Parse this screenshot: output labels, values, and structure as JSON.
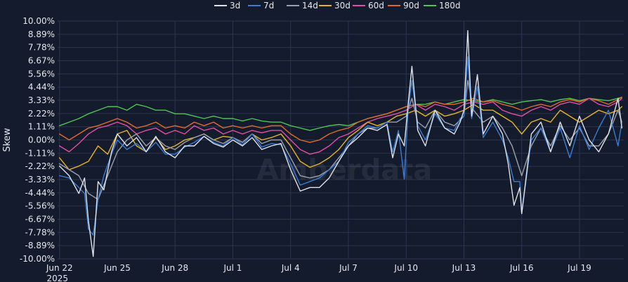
{
  "chart_data": {
    "type": "line",
    "ylabel": "Skew",
    "ylim": [
      -10.0,
      10.0
    ],
    "y_ticks": [
      "10.00%",
      "8.89%",
      "7.78%",
      "6.67%",
      "5.56%",
      "4.44%",
      "3.33%",
      "2.22%",
      "1.11%",
      "0.00%",
      "-1.11%",
      "-2.22%",
      "-3.33%",
      "-4.44%",
      "-5.56%",
      "-6.67%",
      "-7.78%",
      "-8.89%",
      "-10.00%"
    ],
    "x_ticks": [
      {
        "label": "Jun 22",
        "sublabel": "2025",
        "x": 0
      },
      {
        "label": "Jun 25",
        "sublabel": "",
        "x": 3
      },
      {
        "label": "Jun 28",
        "sublabel": "",
        "x": 6
      },
      {
        "label": "Jul 1",
        "sublabel": "",
        "x": 9
      },
      {
        "label": "Jul 4",
        "sublabel": "",
        "x": 12
      },
      {
        "label": "Jul 7",
        "sublabel": "",
        "x": 15
      },
      {
        "label": "Jul 10",
        "sublabel": "",
        "x": 18
      },
      {
        "label": "Jul 13",
        "sublabel": "",
        "x": 21
      },
      {
        "label": "Jul 16",
        "sublabel": "",
        "x": 24
      },
      {
        "label": "Jul 19",
        "sublabel": "",
        "x": 27
      }
    ],
    "xlim": [
      -0.1,
      29.3
    ],
    "x_unit": "days from Jun 22 2025",
    "grid": true,
    "legend_position": "top-center",
    "watermark": "Amberdata",
    "series": [
      {
        "name": "3d",
        "color": "#dde1e8",
        "x": [
          0,
          0.5,
          1,
          1.3,
          1.5,
          1.75,
          2,
          2.3,
          2.7,
          3,
          3.5,
          4,
          4.5,
          5,
          5.5,
          6,
          6.5,
          7,
          7.5,
          8,
          8.5,
          9,
          9.5,
          10,
          10.5,
          11,
          11.5,
          12,
          12.5,
          13,
          13.5,
          14,
          14.5,
          15,
          15.5,
          16,
          16.5,
          17,
          17.3,
          17.6,
          17.9,
          18.1,
          18.3,
          18.6,
          19,
          19.5,
          20,
          20.5,
          20.8,
          21,
          21.2,
          21.4,
          21.7,
          22,
          22.5,
          23,
          23.3,
          23.6,
          23.9,
          24,
          24.5,
          25,
          25.5,
          26,
          26.5,
          27,
          27.5,
          28,
          28.5,
          29,
          29.2
        ],
        "y": [
          -2.2,
          -3.0,
          -4.5,
          -3.2,
          -6.8,
          -9.8,
          -3.5,
          -4.2,
          -1.0,
          0.5,
          -0.5,
          0.2,
          -1.0,
          0.3,
          -1.0,
          -1.5,
          -0.5,
          -0.5,
          0.3,
          -0.3,
          -0.6,
          0.0,
          -0.5,
          0.2,
          -0.8,
          -0.5,
          -0.3,
          -2.5,
          -4.3,
          -4.0,
          -4.0,
          -3.2,
          -1.8,
          -0.5,
          0.2,
          1.0,
          0.8,
          1.3,
          -1.5,
          0.5,
          -0.5,
          3.0,
          6.2,
          0.8,
          -0.5,
          2.5,
          1.0,
          0.5,
          1.5,
          2.5,
          9.2,
          2.0,
          5.5,
          0.5,
          2.0,
          0.5,
          -2.0,
          -5.5,
          -4.0,
          -6.2,
          0.5,
          1.5,
          -1.0,
          1.5,
          -0.5,
          2.0,
          0.0,
          -1.0,
          0.5,
          3.5,
          1.0
        ]
      },
      {
        "name": "7d",
        "color": "#3a7bd5",
        "x": [
          0,
          0.5,
          1,
          1.3,
          1.5,
          1.75,
          2,
          2.3,
          2.7,
          3,
          3.5,
          4,
          4.5,
          5,
          5.5,
          6,
          6.5,
          7,
          7.5,
          8,
          8.5,
          9,
          9.5,
          10,
          10.5,
          11,
          11.5,
          12,
          12.5,
          13,
          13.5,
          14,
          14.5,
          15,
          15.5,
          16,
          16.5,
          17,
          17.3,
          17.6,
          17.9,
          18.1,
          18.3,
          18.6,
          19,
          19.5,
          20,
          20.5,
          20.8,
          21,
          21.2,
          21.4,
          21.7,
          22,
          22.5,
          23,
          23.3,
          23.6,
          23.9,
          24,
          24.5,
          25,
          25.5,
          26,
          26.5,
          27,
          27.5,
          28,
          28.5,
          29,
          29.2
        ],
        "y": [
          -3.0,
          -3.2,
          -4.0,
          -4.5,
          -7.5,
          -8.0,
          -5.0,
          -3.0,
          -1.2,
          0.0,
          -0.8,
          -0.3,
          -1.0,
          -0.2,
          -1.2,
          -1.2,
          -0.6,
          -0.2,
          0.3,
          -0.2,
          -0.5,
          0.2,
          -0.4,
          0.5,
          -0.6,
          -0.3,
          -0.4,
          -2.0,
          -3.8,
          -3.5,
          -3.2,
          -2.5,
          -1.8,
          -0.2,
          0.5,
          1.2,
          1.0,
          1.5,
          -1.0,
          0.8,
          -3.3,
          2.5,
          5.0,
          1.2,
          0.0,
          2.2,
          1.0,
          0.8,
          1.8,
          2.0,
          7.0,
          1.8,
          4.5,
          0.2,
          1.5,
          0.0,
          -1.5,
          -3.5,
          -3.5,
          -6.2,
          0.0,
          1.0,
          -1.0,
          1.0,
          -1.5,
          1.2,
          -0.8,
          1.0,
          2.5,
          -0.5,
          1.5
        ]
      },
      {
        "name": "14d",
        "color": "#9aa0ab",
        "x": [
          0,
          0.5,
          1,
          1.5,
          2,
          2.5,
          3,
          3.5,
          4,
          4.5,
          5,
          5.5,
          6,
          6.5,
          7,
          7.5,
          8,
          8.5,
          9,
          9.5,
          10,
          10.5,
          11,
          11.5,
          12,
          12.5,
          13,
          13.5,
          14,
          14.5,
          15,
          15.5,
          16,
          16.5,
          17,
          17.5,
          18,
          18.3,
          18.6,
          19,
          19.5,
          20,
          20.5,
          21,
          21.2,
          21.5,
          22,
          22.5,
          23,
          23.5,
          24,
          24.5,
          25,
          25.5,
          26,
          26.5,
          27,
          27.5,
          28,
          28.5,
          29,
          29.2
        ],
        "y": [
          -2.0,
          -2.5,
          -3.0,
          -4.5,
          -5.0,
          -3.0,
          -1.0,
          0.0,
          0.5,
          -0.5,
          0.2,
          -0.5,
          -0.8,
          -0.2,
          0.2,
          0.5,
          0.0,
          -0.3,
          0.2,
          -0.2,
          0.5,
          -0.3,
          0.0,
          0.0,
          -1.5,
          -3.0,
          -3.2,
          -3.0,
          -2.5,
          -1.5,
          -0.5,
          0.5,
          1.0,
          1.0,
          1.5,
          1.5,
          2.0,
          3.5,
          1.5,
          1.0,
          2.5,
          1.5,
          1.2,
          2.0,
          5.0,
          2.5,
          1.5,
          2.0,
          1.0,
          -0.5,
          -3.0,
          -0.5,
          1.0,
          -0.5,
          1.2,
          0.0,
          1.0,
          -0.5,
          -0.5,
          0.5,
          2.5,
          1.5
        ]
      },
      {
        "name": "30d",
        "color": "#e6b422",
        "x": [
          0,
          0.5,
          1,
          1.5,
          2,
          2.5,
          3,
          3.5,
          4,
          4.5,
          5,
          5.5,
          6,
          6.5,
          7,
          7.5,
          8,
          8.5,
          9,
          9.5,
          10,
          10.5,
          11,
          11.5,
          12,
          12.5,
          13,
          13.5,
          14,
          14.5,
          15,
          15.5,
          16,
          16.5,
          17,
          17.5,
          18,
          18.5,
          19,
          19.5,
          20,
          20.5,
          21,
          21.5,
          22,
          22.5,
          23,
          23.5,
          24,
          24.5,
          25,
          25.5,
          26,
          26.5,
          27,
          27.5,
          28,
          28.5,
          29,
          29.2
        ],
        "y": [
          -1.5,
          -2.5,
          -2.2,
          -1.8,
          -0.5,
          -1.2,
          0.5,
          0.8,
          -0.5,
          -1.0,
          0.2,
          -0.8,
          -0.5,
          0.0,
          0.2,
          0.5,
          0.0,
          0.3,
          0.2,
          -0.2,
          0.5,
          0.0,
          0.2,
          0.5,
          -0.5,
          -1.8,
          -2.3,
          -2.0,
          -1.5,
          -0.8,
          0.2,
          0.8,
          1.5,
          1.2,
          1.5,
          2.0,
          2.2,
          2.5,
          2.0,
          2.5,
          2.0,
          2.2,
          2.5,
          3.0,
          2.5,
          2.5,
          2.0,
          1.5,
          0.5,
          1.5,
          1.8,
          1.5,
          2.5,
          2.0,
          1.5,
          2.0,
          2.5,
          2.2,
          2.5,
          2.8
        ]
      },
      {
        "name": "60d",
        "color": "#e24fa4",
        "x": [
          0,
          0.5,
          1,
          1.5,
          2,
          2.5,
          3,
          3.5,
          4,
          4.5,
          5,
          5.5,
          6,
          6.5,
          7,
          7.5,
          8,
          8.5,
          9,
          9.5,
          10,
          10.5,
          11,
          11.5,
          12,
          12.5,
          13,
          13.5,
          14,
          14.5,
          15,
          15.5,
          16,
          16.5,
          17,
          17.5,
          18,
          18.5,
          19,
          19.5,
          20,
          20.5,
          21,
          21.5,
          22,
          22.5,
          23,
          23.5,
          24,
          24.5,
          25,
          25.5,
          26,
          26.5,
          27,
          27.5,
          28,
          28.5,
          29,
          29.2
        ],
        "y": [
          -0.5,
          -1.0,
          -0.3,
          0.5,
          1.0,
          1.2,
          1.5,
          1.2,
          0.5,
          0.8,
          1.0,
          0.5,
          0.8,
          0.5,
          1.2,
          0.8,
          1.0,
          0.5,
          0.8,
          0.5,
          0.8,
          0.6,
          0.8,
          0.8,
          0.0,
          -0.8,
          -1.2,
          -1.0,
          -0.5,
          0.2,
          0.5,
          1.0,
          1.5,
          1.8,
          2.0,
          2.2,
          2.5,
          3.0,
          2.5,
          3.0,
          2.8,
          2.5,
          3.0,
          3.2,
          3.0,
          3.2,
          2.5,
          2.2,
          2.0,
          2.5,
          2.8,
          2.5,
          3.0,
          3.2,
          3.0,
          3.5,
          3.0,
          2.8,
          3.2,
          3.5
        ]
      },
      {
        "name": "90d",
        "color": "#e06b2a",
        "x": [
          0,
          0.5,
          1,
          1.5,
          2,
          2.5,
          3,
          3.5,
          4,
          4.5,
          5,
          5.5,
          6,
          6.5,
          7,
          7.5,
          8,
          8.5,
          9,
          9.5,
          10,
          10.5,
          11,
          11.5,
          12,
          12.5,
          13,
          13.5,
          14,
          14.5,
          15,
          15.5,
          16,
          16.5,
          17,
          17.5,
          18,
          18.5,
          19,
          19.5,
          20,
          20.5,
          21,
          21.5,
          22,
          22.5,
          23,
          23.5,
          24,
          24.5,
          25,
          25.5,
          26,
          26.5,
          27,
          27.5,
          28,
          28.5,
          29,
          29.2
        ],
        "y": [
          0.5,
          0.0,
          0.5,
          1.0,
          1.2,
          1.5,
          1.8,
          1.5,
          1.0,
          1.2,
          1.5,
          1.0,
          1.2,
          1.0,
          1.5,
          1.2,
          1.5,
          1.0,
          1.2,
          1.0,
          1.2,
          1.0,
          1.2,
          1.2,
          0.5,
          0.0,
          -0.2,
          0.0,
          0.5,
          0.8,
          1.0,
          1.5,
          1.8,
          2.0,
          2.2,
          2.5,
          2.8,
          3.0,
          2.8,
          3.2,
          3.0,
          3.0,
          3.2,
          3.5,
          3.2,
          3.3,
          3.0,
          2.8,
          2.5,
          2.8,
          3.0,
          2.8,
          3.2,
          3.4,
          3.2,
          3.5,
          3.3,
          3.0,
          3.4,
          3.6
        ]
      },
      {
        "name": "180d",
        "color": "#4fc653",
        "x": [
          0,
          0.5,
          1,
          1.5,
          2,
          2.5,
          3,
          3.5,
          4,
          4.5,
          5,
          5.5,
          6,
          6.5,
          7,
          7.5,
          8,
          8.5,
          9,
          9.5,
          10,
          10.5,
          11,
          11.5,
          12,
          12.5,
          13,
          13.5,
          14,
          14.5,
          15,
          15.5,
          16,
          16.5,
          17,
          17.5,
          18,
          18.5,
          19,
          19.5,
          20,
          20.5,
          21,
          21.5,
          22,
          22.5,
          23,
          23.5,
          24,
          24.5,
          25,
          25.5,
          26,
          26.5,
          27,
          27.5,
          28,
          28.5,
          29,
          29.2
        ],
        "y": [
          1.2,
          1.5,
          1.8,
          2.2,
          2.5,
          2.8,
          2.8,
          2.5,
          3.0,
          2.8,
          2.5,
          2.5,
          2.2,
          2.2,
          2.0,
          1.8,
          2.0,
          1.8,
          1.8,
          1.6,
          1.8,
          1.6,
          1.5,
          1.5,
          1.2,
          1.0,
          0.8,
          1.0,
          1.2,
          1.3,
          1.2,
          1.5,
          1.8,
          2.0,
          2.2,
          2.5,
          2.8,
          3.0,
          3.0,
          3.2,
          3.0,
          3.2,
          3.4,
          3.3,
          3.2,
          3.4,
          3.2,
          3.0,
          3.2,
          3.3,
          3.4,
          3.2,
          3.4,
          3.5,
          3.3,
          3.5,
          3.4,
          3.3,
          3.5,
          3.6
        ]
      }
    ]
  }
}
